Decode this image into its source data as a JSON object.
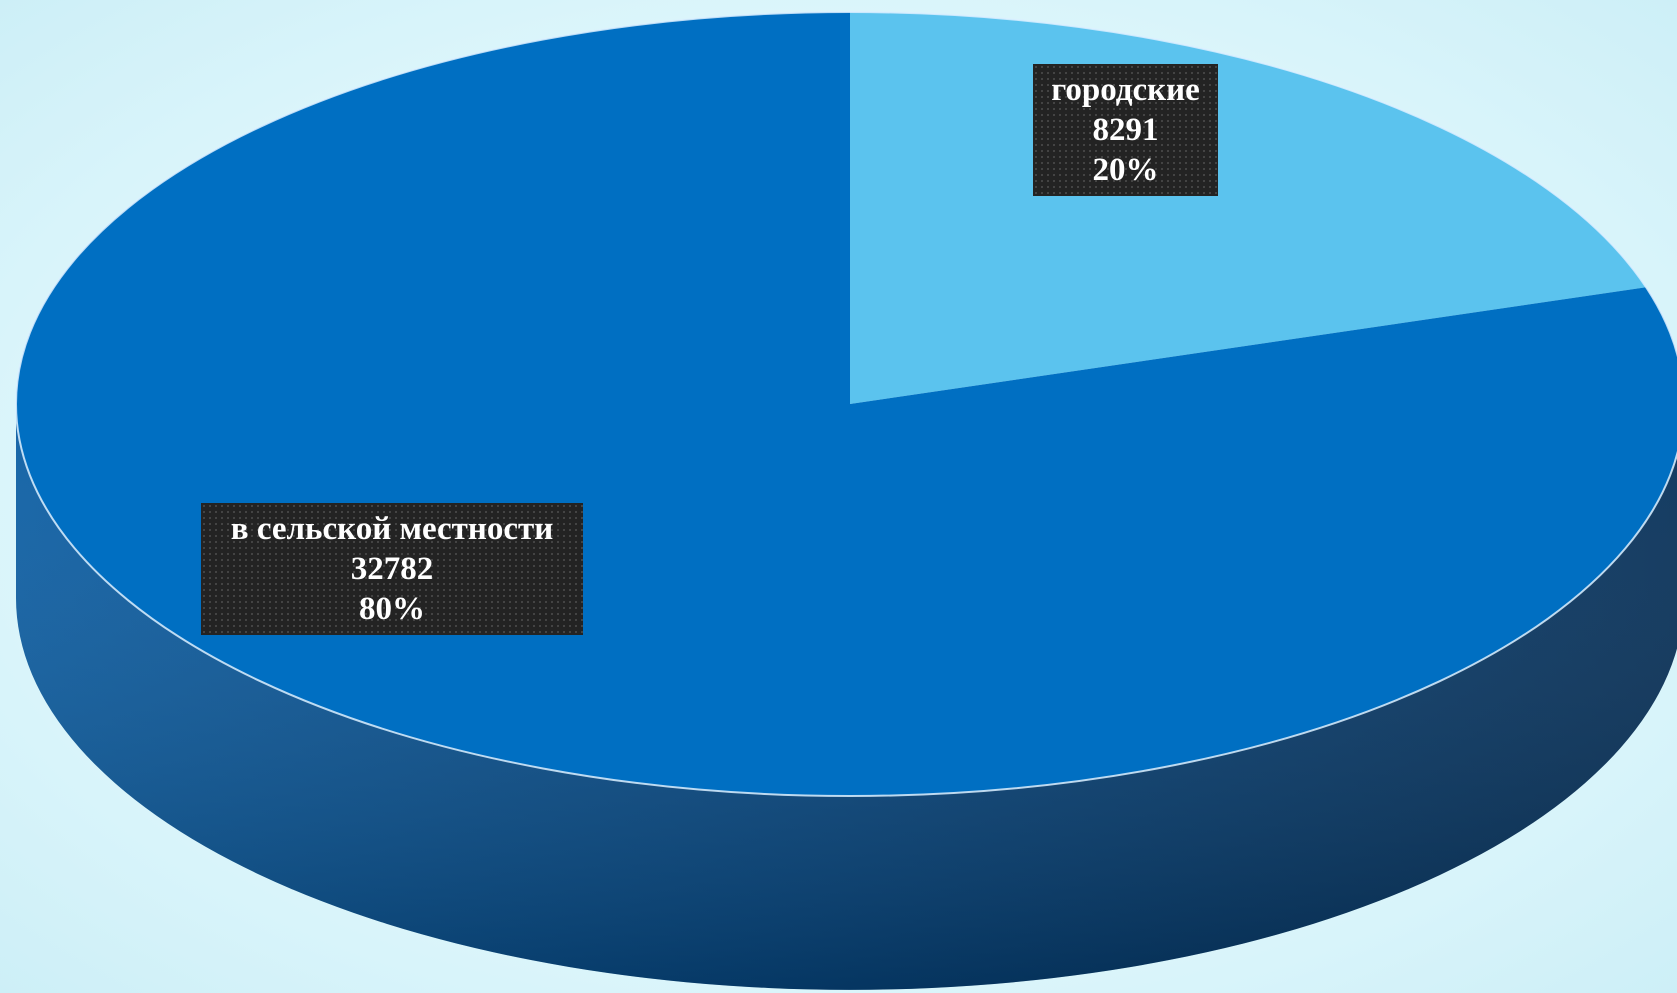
{
  "chart_data": {
    "type": "pie",
    "style": "3d",
    "slices": [
      {
        "category": "городские",
        "value": 8291,
        "percent": "20%",
        "color": "#5bc3ee"
      },
      {
        "category": "в сельской местности",
        "value": 32782,
        "percent": "80%",
        "color": "#006fc2"
      }
    ],
    "side_colors": {
      "light": "#0a5fa6",
      "dark": "#073a6d"
    },
    "legend": "none",
    "data_labels": "category, value, percent"
  }
}
